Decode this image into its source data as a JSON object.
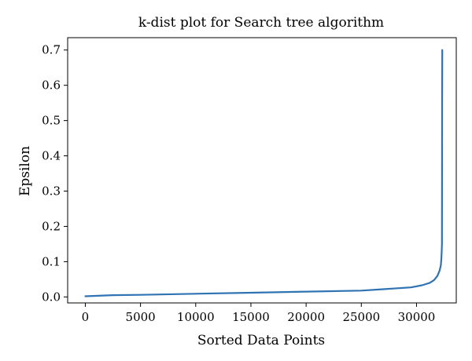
{
  "chart_data": {
    "type": "line",
    "title": "k-dist plot for Search tree algorithm",
    "xlabel": "Sorted Data Points",
    "ylabel": "Epsilon",
    "xlim": [
      -1600,
      33600
    ],
    "ylim": [
      -0.017,
      0.735
    ],
    "x_ticks": [
      0,
      5000,
      10000,
      15000,
      20000,
      25000,
      30000
    ],
    "x_tick_labels": [
      "0",
      "5000",
      "10000",
      "15000",
      "20000",
      "25000",
      "30000"
    ],
    "y_ticks": [
      0.0,
      0.1,
      0.2,
      0.3,
      0.4,
      0.5,
      0.6,
      0.7
    ],
    "y_tick_labels": [
      "0.0",
      "0.1",
      "0.2",
      "0.3",
      "0.4",
      "0.5",
      "0.6",
      "0.7"
    ],
    "grid": false,
    "legend": "none",
    "series": [
      {
        "color": "#2f73b3",
        "x": [
          0,
          2500,
          5000,
          10000,
          15000,
          20000,
          25000,
          27000,
          29500,
          30500,
          31200,
          31600,
          31900,
          32100,
          32200,
          32250,
          32280,
          32300,
          32310,
          32320,
          32330
        ],
        "y": [
          0.002,
          0.005,
          0.006,
          0.009,
          0.012,
          0.015,
          0.018,
          0.022,
          0.027,
          0.033,
          0.04,
          0.048,
          0.06,
          0.075,
          0.09,
          0.11,
          0.13,
          0.15,
          0.3,
          0.55,
          0.7
        ]
      }
    ]
  }
}
